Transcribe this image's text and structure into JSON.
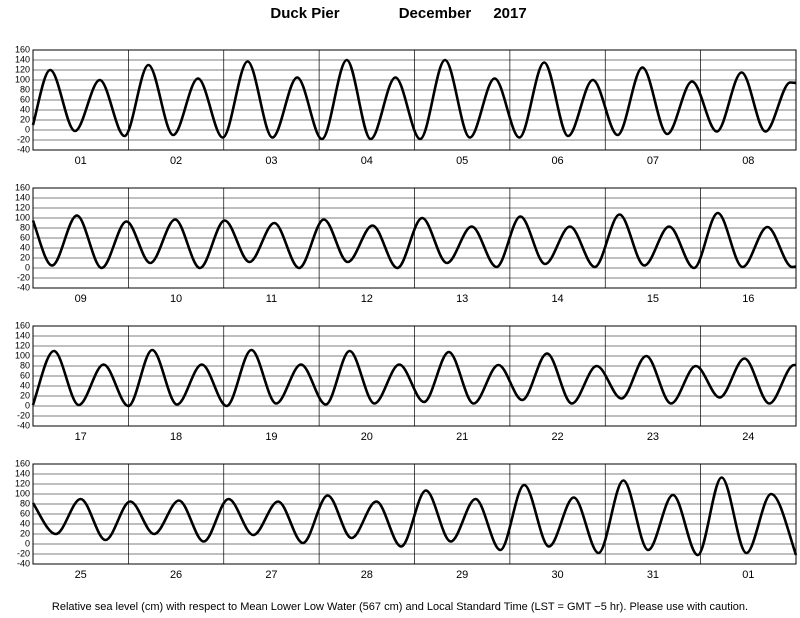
{
  "header": {
    "station": "Duck Pier",
    "month": "December",
    "year": "2017"
  },
  "footer": "Relative sea level (cm) with respect to Mean Lower Low Water (567 cm) and Local Standard Time (LST = GMT −5 hr). Please use with caution.",
  "chart_data": [
    {
      "type": "line",
      "categories": [
        "01",
        "02",
        "03",
        "04",
        "05",
        "06",
        "07",
        "08"
      ],
      "xlim": [
        0,
        8
      ],
      "ylim": [
        -40,
        160
      ],
      "yticks": [
        -40,
        -20,
        0,
        20,
        40,
        60,
        80,
        100,
        120,
        140,
        160
      ],
      "grid": true,
      "series": [
        {
          "color": "#000000",
          "x": [
            0,
            0.18,
            0.44,
            0.7,
            0.96,
            1.21,
            1.47,
            1.73,
            1.99,
            2.25,
            2.51,
            2.77,
            3.03,
            3.29,
            3.54,
            3.8,
            4.06,
            4.32,
            4.58,
            4.84,
            5.1,
            5.36,
            5.61,
            5.87,
            6.13,
            6.39,
            6.65,
            6.91,
            7.17,
            7.43,
            7.68,
            7.94,
            8
          ],
          "values": [
            10,
            120,
            -2,
            100,
            -12,
            130,
            -10,
            103,
            -15,
            137,
            -15,
            105,
            -18,
            140,
            -18,
            105,
            -18,
            140,
            -15,
            103,
            -15,
            135,
            -12,
            100,
            -10,
            125,
            -8,
            97,
            -3,
            115,
            -3,
            95,
            94
          ]
        }
      ]
    },
    {
      "type": "line",
      "categories": [
        "09",
        "10",
        "11",
        "12",
        "13",
        "14",
        "15",
        "16"
      ],
      "xlim": [
        0,
        8
      ],
      "ylim": [
        -40,
        160
      ],
      "yticks": [
        -40,
        -20,
        0,
        20,
        40,
        60,
        80,
        100,
        120,
        140,
        160
      ],
      "grid": true,
      "series": [
        {
          "color": "#000000",
          "x": [
            0,
            0.2,
            0.46,
            0.72,
            0.98,
            1.23,
            1.49,
            1.75,
            2.01,
            2.27,
            2.53,
            2.79,
            3.05,
            3.3,
            3.56,
            3.82,
            4.08,
            4.34,
            4.6,
            4.86,
            5.11,
            5.37,
            5.63,
            5.89,
            6.15,
            6.41,
            6.67,
            6.93,
            7.18,
            7.44,
            7.7,
            7.96,
            8
          ],
          "values": [
            95,
            5,
            105,
            0,
            93,
            10,
            97,
            0,
            95,
            12,
            90,
            0,
            97,
            12,
            85,
            0,
            100,
            10,
            83,
            2,
            103,
            8,
            83,
            2,
            107,
            5,
            83,
            0,
            110,
            2,
            82,
            2,
            3
          ]
        }
      ]
    },
    {
      "type": "line",
      "categories": [
        "17",
        "18",
        "19",
        "20",
        "21",
        "22",
        "23",
        "24"
      ],
      "xlim": [
        0,
        8
      ],
      "ylim": [
        -40,
        160
      ],
      "yticks": [
        -40,
        -20,
        0,
        20,
        40,
        60,
        80,
        100,
        120,
        140,
        160
      ],
      "grid": true,
      "series": [
        {
          "color": "#000000",
          "x": [
            0,
            0.22,
            0.48,
            0.74,
            1.0,
            1.25,
            1.51,
            1.77,
            2.03,
            2.29,
            2.55,
            2.81,
            3.07,
            3.32,
            3.58,
            3.84,
            4.1,
            4.36,
            4.62,
            4.88,
            5.13,
            5.39,
            5.65,
            5.91,
            6.17,
            6.43,
            6.69,
            6.95,
            7.2,
            7.46,
            7.72,
            7.98,
            8
          ],
          "values": [
            2,
            110,
            2,
            83,
            0,
            112,
            3,
            83,
            0,
            112,
            5,
            83,
            3,
            110,
            5,
            83,
            8,
            108,
            5,
            82,
            12,
            105,
            5,
            80,
            15,
            100,
            5,
            80,
            17,
            95,
            5,
            82,
            82
          ]
        }
      ]
    },
    {
      "type": "line",
      "categories": [
        "25",
        "26",
        "27",
        "28",
        "29",
        "30",
        "31",
        "01"
      ],
      "xlim": [
        0,
        8
      ],
      "ylim": [
        -40,
        160
      ],
      "yticks": [
        -40,
        -20,
        0,
        20,
        40,
        60,
        80,
        100,
        120,
        140,
        160
      ],
      "grid": true,
      "series": [
        {
          "color": "#000000",
          "x": [
            0,
            0.24,
            0.5,
            0.76,
            1.02,
            1.27,
            1.53,
            1.79,
            2.05,
            2.31,
            2.57,
            2.83,
            3.09,
            3.34,
            3.6,
            3.86,
            4.12,
            4.38,
            4.64,
            4.9,
            5.15,
            5.41,
            5.67,
            5.93,
            6.19,
            6.45,
            6.71,
            6.97,
            7.22,
            7.48,
            7.74,
            8.0
          ],
          "values": [
            82,
            20,
            90,
            8,
            85,
            20,
            87,
            5,
            90,
            18,
            85,
            2,
            97,
            12,
            85,
            -5,
            107,
            5,
            90,
            -12,
            118,
            -5,
            93,
            -18,
            127,
            -12,
            98,
            -22,
            133,
            -18,
            100,
            -22
          ]
        }
      ]
    }
  ]
}
